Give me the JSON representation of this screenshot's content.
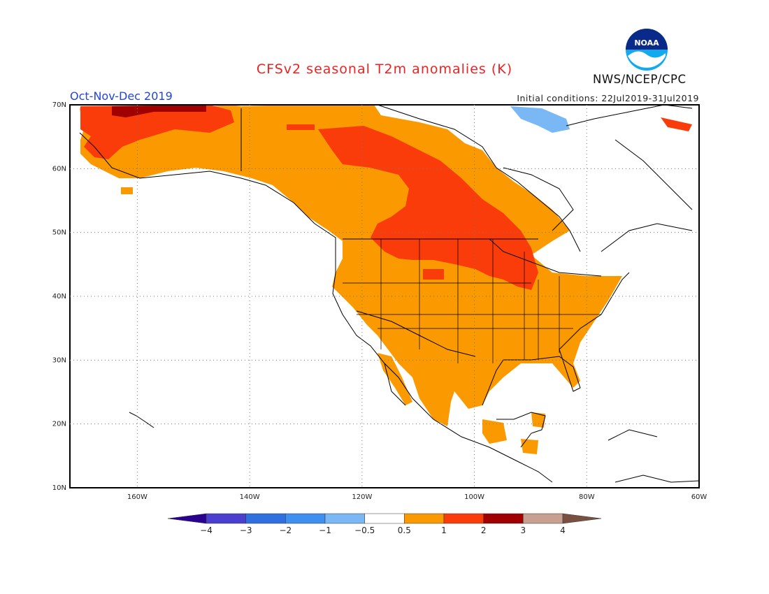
{
  "title": "CFSv2 seasonal T2m anomalies (K)",
  "season": "Oct-Nov-Dec 2019",
  "initial_conditions": "Initial conditions: 22Jul2019-31Jul2019",
  "agency": "NWS/NCEP/CPC",
  "logo_text": "NOAA",
  "map": {
    "projection": "lat-lon",
    "lon_range": [
      -172,
      -60
    ],
    "lat_range": [
      10,
      70
    ],
    "lat_labels": [
      "10N",
      "20N",
      "30N",
      "40N",
      "50N",
      "60N",
      "70N"
    ],
    "lon_labels": [
      "160W",
      "140W",
      "120W",
      "100W",
      "80W",
      "60W"
    ],
    "gridlines": "dotted"
  },
  "colorbar": {
    "labels": [
      "-4",
      "-3",
      "-2",
      "-1",
      "-0.5",
      "0.5",
      "1",
      "2",
      "3",
      "4"
    ],
    "colors": [
      "#2a0090",
      "#4a3fcf",
      "#2f6fdf",
      "#3d8ff0",
      "#7ab8f5",
      "#ffffff",
      "#fa9900",
      "#fa3c0a",
      "#a00000",
      "#c8a090",
      "#7a5040"
    ]
  }
}
